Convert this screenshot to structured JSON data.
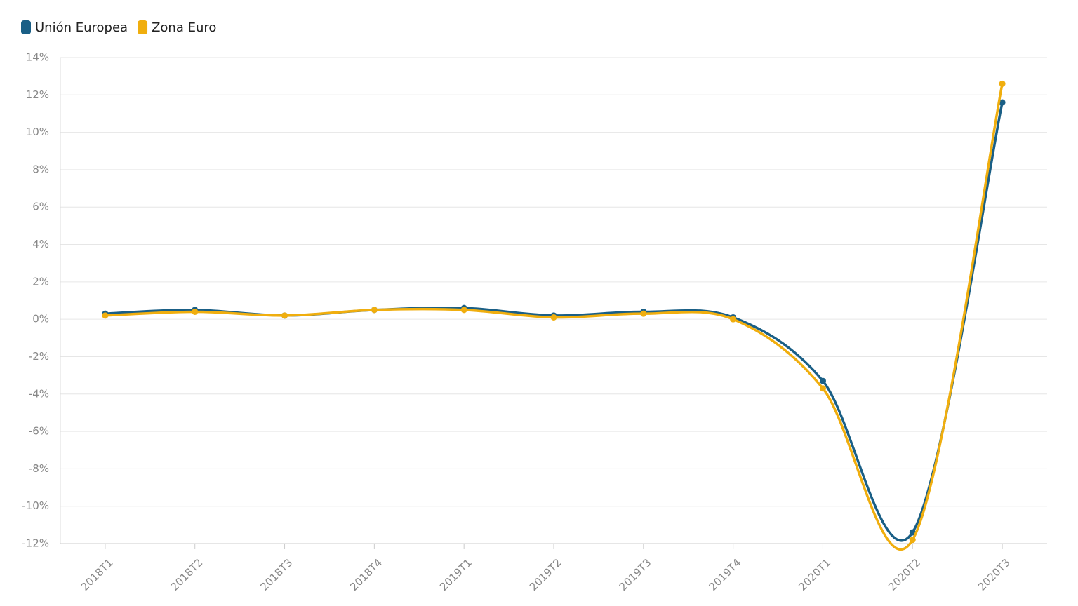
{
  "chart_data": {
    "type": "line",
    "categories": [
      "2018T1",
      "2018T2",
      "2018T3",
      "2018T4",
      "2019T1",
      "2019T2",
      "2019T3",
      "2019T4",
      "2020T1",
      "2020T2",
      "2020T3"
    ],
    "series": [
      {
        "name": "Unión Europea",
        "color": "#1a5f86",
        "values": [
          0.3,
          0.5,
          0.2,
          0.5,
          0.6,
          0.2,
          0.4,
          0.1,
          -3.3,
          -11.4,
          11.6
        ]
      },
      {
        "name": "Zona Euro",
        "color": "#f0ae0e",
        "values": [
          0.2,
          0.4,
          0.2,
          0.5,
          0.5,
          0.1,
          0.3,
          0.0,
          -3.7,
          -11.8,
          12.6
        ]
      }
    ],
    "ylim": [
      -12,
      14
    ],
    "yticks": [
      {
        "value": -12,
        "label": "-12%"
      },
      {
        "value": -10,
        "label": "-10%"
      },
      {
        "value": -8,
        "label": "-8%"
      },
      {
        "value": -6,
        "label": "-6%"
      },
      {
        "value": -4,
        "label": "-4%"
      },
      {
        "value": -2,
        "label": "-2%"
      },
      {
        "value": 0,
        "label": "0%"
      },
      {
        "value": 2,
        "label": "2%"
      },
      {
        "value": 4,
        "label": "4%"
      },
      {
        "value": 6,
        "label": "6%"
      },
      {
        "value": 8,
        "label": "8%"
      },
      {
        "value": 10,
        "label": "10%"
      },
      {
        "value": 12,
        "label": "12%"
      },
      {
        "value": 14,
        "label": "14%"
      }
    ],
    "grid": true
  }
}
